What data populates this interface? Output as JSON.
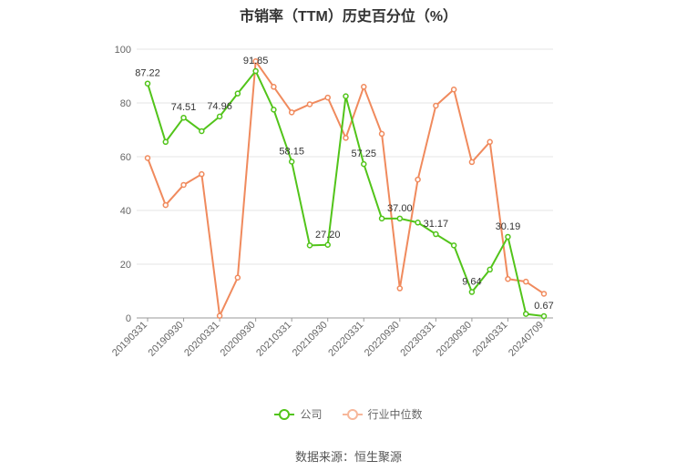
{
  "title": "市销率（TTM）历史百分位（%）",
  "source": "数据来源：恒生聚源",
  "chart_data": {
    "type": "line",
    "ylim": [
      0,
      100
    ],
    "yticks": [
      "0",
      "20",
      "40",
      "60",
      "80",
      "100"
    ],
    "grid": true,
    "legend_position": "bottom",
    "x": [
      "20190331",
      "",
      "20190930",
      "",
      "20200331",
      "",
      "20200930",
      "",
      "20210331",
      "",
      "20210930",
      "",
      "20220331",
      "",
      "20220930",
      "",
      "20230331",
      "",
      "20230930",
      "",
      "20240331",
      "",
      "20240709"
    ],
    "xtick_labels": [
      "20190331",
      "20190930",
      "20200331",
      "20200930",
      "20210331",
      "20210930",
      "20220331",
      "20220930",
      "20230331",
      "20230930",
      "20240331",
      "20240709"
    ],
    "series": [
      {
        "name": "公司",
        "color": "#52c41a",
        "values": [
          87.22,
          65.5,
          74.51,
          69.5,
          74.96,
          83.5,
          91.85,
          77.5,
          58.15,
          27.0,
          27.2,
          82.5,
          57.25,
          37.0,
          37.0,
          35.5,
          31.17,
          27.0,
          9.64,
          18.0,
          30.19,
          1.5,
          0.67
        ],
        "labels": [
          "87.22",
          "",
          "74.51",
          "",
          "74.96",
          "",
          "91.85",
          "",
          "58.15",
          "",
          "27.20",
          "",
          "57.25",
          "",
          "37.00",
          "",
          "31.17",
          "",
          "9.64",
          "",
          "30.19",
          "",
          "0.67"
        ]
      },
      {
        "name": "行业中位数",
        "color": "#f08a5d",
        "values": [
          59.5,
          42.0,
          49.5,
          53.5,
          0.8,
          15.0,
          95.5,
          86.0,
          76.5,
          79.5,
          82.0,
          67.0,
          86.0,
          68.5,
          11.0,
          51.5,
          79.0,
          85.0,
          58.0,
          65.5,
          14.5,
          13.5,
          9.0
        ]
      }
    ]
  }
}
